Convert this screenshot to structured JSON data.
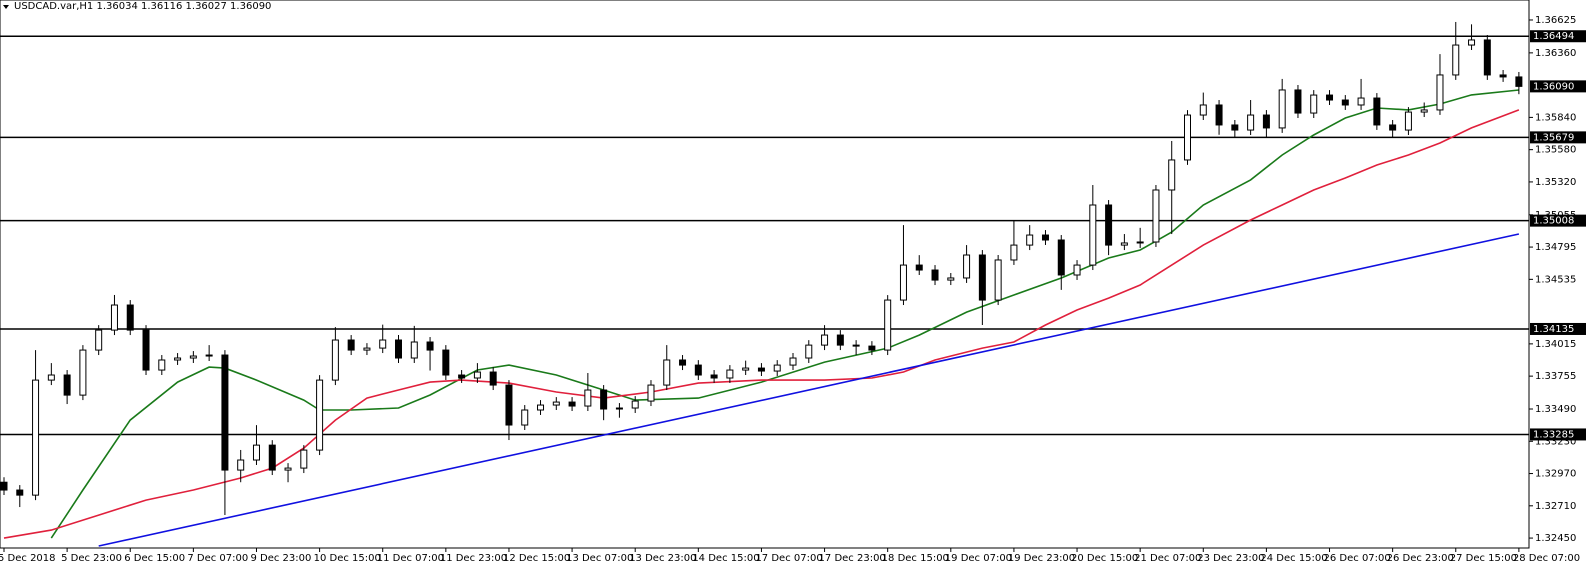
{
  "chart_data": {
    "type": "candlestick",
    "title": "USDCAD.var,H1  1.36034 1.36116 1.36027 1.36090",
    "bull_color": "#ffffff",
    "bear_color": "#000000",
    "ylim": [
      1.3237,
      1.36786
    ],
    "yticks": [
      1.36625,
      {
        "value": 1.3636,
        "label": "1.36360"
      },
      {
        "value": 1.3584,
        "label": "1.35840"
      },
      {
        "value": 1.3558,
        "label": "1.35580"
      },
      {
        "value": 1.3532,
        "label": "1.35320"
      },
      1.35055,
      1.34795,
      1.34535,
      1.34015,
      1.33755,
      {
        "value": 1.3349,
        "label": "1.33490"
      },
      {
        "value": 1.3323,
        "label": "1.33230"
      },
      {
        "value": 1.3297,
        "label": "1.32970"
      },
      {
        "value": 1.3271,
        "label": "1.32710"
      },
      {
        "value": 1.3245,
        "label": "1.32450"
      }
    ],
    "categories": [
      "5 Dec 2018",
      null,
      null,
      null,
      "5 Dec 23:00",
      null,
      null,
      null,
      "6 Dec 15:00",
      null,
      null,
      null,
      "7 Dec 07:00",
      null,
      null,
      null,
      "9 Dec 23:00",
      null,
      null,
      null,
      "10 Dec 15:00",
      null,
      null,
      null,
      "11 Dec 07:00",
      null,
      null,
      null,
      "11 Dec 23:00",
      null,
      null,
      null,
      "12 Dec 15:00",
      null,
      null,
      null,
      "13 Dec 07:00",
      null,
      null,
      null,
      "13 Dec 23:00",
      null,
      null,
      null,
      "14 Dec 15:00",
      null,
      null,
      null,
      "17 Dec 07:00",
      null,
      null,
      null,
      "17 Dec 23:00",
      null,
      null,
      null,
      "18 Dec 15:00",
      null,
      null,
      null,
      "19 Dec 07:00",
      null,
      null,
      null,
      "19 Dec 23:00",
      null,
      null,
      null,
      "20 Dec 15:00",
      null,
      null,
      null,
      "21 Dec 07:00",
      null,
      null,
      null,
      "23 Dec 23:00",
      null,
      null,
      null,
      "24 Dec 15:00",
      null,
      null,
      null,
      "26 Dec 07:00",
      null,
      null,
      null,
      "26 Dec 23:00",
      null,
      null,
      null,
      "27 Dec 15:00",
      null,
      null,
      null,
      "28 Dec 07:00"
    ],
    "open": [
      1.329,
      1.32837,
      1.32796,
      1.33723,
      1.33764,
      1.33602,
      1.33965,
      1.34126,
      1.34328,
      1.34126,
      1.33804,
      1.33885,
      1.33901,
      1.33917,
      1.33925,
      1.32998,
      1.33079,
      1.33199,
      1.32998,
      1.33014,
      1.33159,
      1.33723,
      1.34046,
      1.33965,
      1.33981,
      1.34046,
      1.33901,
      1.3403,
      1.33965,
      1.33764,
      1.3374,
      1.33788,
      1.33683,
      1.33361,
      1.33482,
      1.33522,
      1.33546,
      1.33514,
      1.33643,
      1.3349,
      1.33498,
      1.33554,
      1.33683,
      1.33885,
      1.33844,
      1.33764,
      1.3374,
      1.33804,
      1.3382,
      1.33796,
      1.33844,
      1.33901,
      1.34005,
      1.34086,
      1.34005,
      1.33997,
      1.33965,
      1.34368,
      1.3465,
      1.3461,
      1.34529,
      1.34546,
      1.34731,
      1.34368,
      1.34691,
      1.34811,
      1.34892,
      1.34852,
      1.3457,
      1.3465,
      1.35134,
      1.34811,
      1.34828,
      1.34836,
      1.35255,
      1.35497,
      1.35859,
      1.3594,
      1.35779,
      1.35738,
      1.35859,
      1.35755,
      1.36061,
      1.35875,
      1.3602,
      1.3598,
      1.3594,
      1.35996,
      1.35779,
      1.35738,
      1.35883,
      1.359,
      1.36182,
      1.36423,
      1.36464,
      1.36182,
      1.36166
    ],
    "high": [
      1.3294,
      1.32877,
      1.33965,
      1.3386,
      1.33804,
      1.34005,
      1.34166,
      1.34409,
      1.34368,
      1.34166,
      1.33925,
      1.33941,
      1.33957,
      1.34005,
      1.33965,
      1.3316,
      1.3336,
      1.33239,
      1.33054,
      1.33199,
      1.33763,
      1.3415,
      1.34086,
      1.34021,
      1.3417,
      1.34086,
      1.3416,
      1.3407,
      1.34005,
      1.33804,
      1.3386,
      1.33828,
      1.33723,
      1.33522,
      1.33562,
      1.33586,
      1.33586,
      1.3378,
      1.33683,
      1.33538,
      1.33594,
      1.33723,
      1.34005,
      1.33925,
      1.33884,
      1.33804,
      1.33844,
      1.3388,
      1.3386,
      1.33884,
      1.33941,
      1.34045,
      1.34166,
      1.34126,
      1.34045,
      1.34037,
      1.34408,
      1.34972,
      1.3473,
      1.3465,
      1.34586,
      1.34811,
      1.34771,
      1.34731,
      1.35013,
      1.34972,
      1.34932,
      1.34892,
      1.3469,
      1.35295,
      1.35174,
      1.349,
      1.3495,
      1.35295,
      1.3565,
      1.35899,
      1.3604,
      1.3598,
      1.35819,
      1.3598,
      1.35899,
      1.3615,
      1.36101,
      1.3606,
      1.3606,
      1.3602,
      1.3615,
      1.36036,
      1.35819,
      1.35923,
      1.3596,
      1.3635,
      1.36609,
      1.3659,
      1.36504,
      1.36222,
      1.36206
    ],
    "low": [
      1.32797,
      1.327,
      1.32756,
      1.33683,
      1.3353,
      1.33562,
      1.33925,
      1.34086,
      1.34086,
      1.33764,
      1.33764,
      1.33845,
      1.33861,
      1.33877,
      1.32636,
      1.329,
      1.33039,
      1.32958,
      1.329,
      1.32974,
      1.33119,
      1.33683,
      1.33925,
      1.33925,
      1.33941,
      1.33861,
      1.33861,
      1.338,
      1.33724,
      1.337,
      1.337,
      1.33643,
      1.3324,
      1.33321,
      1.33442,
      1.33482,
      1.33474,
      1.33474,
      1.334,
      1.3342,
      1.33458,
      1.33514,
      1.33643,
      1.33804,
      1.33724,
      1.337,
      1.337,
      1.33764,
      1.33756,
      1.33756,
      1.33804,
      1.33861,
      1.33965,
      1.33965,
      1.33925,
      1.33925,
      1.33925,
      1.34328,
      1.3457,
      1.34489,
      1.34489,
      1.34506,
      1.34167,
      1.34328,
      1.34651,
      1.34771,
      1.34812,
      1.3445,
      1.3453,
      1.3461,
      1.3473,
      1.34771,
      1.34788,
      1.34796,
      1.349,
      1.35457,
      1.35819,
      1.357,
      1.3568,
      1.35698,
      1.3568,
      1.35715,
      1.35835,
      1.35835,
      1.3594,
      1.359,
      1.359,
      1.35739,
      1.3568,
      1.35698,
      1.35843,
      1.3586,
      1.36142,
      1.36383,
      1.36142,
      1.36126,
      1.36027
    ],
    "close": [
      1.32837,
      1.32796,
      1.33723,
      1.33764,
      1.33602,
      1.33965,
      1.34126,
      1.34328,
      1.34126,
      1.33804,
      1.33885,
      1.33901,
      1.33917,
      1.33925,
      1.32998,
      1.33079,
      1.33199,
      1.32998,
      1.33014,
      1.33159,
      1.33723,
      1.34046,
      1.33965,
      1.33981,
      1.34046,
      1.33901,
      1.3403,
      1.33965,
      1.33764,
      1.3374,
      1.33788,
      1.33683,
      1.33361,
      1.33482,
      1.33522,
      1.33546,
      1.33514,
      1.33643,
      1.3349,
      1.33498,
      1.33554,
      1.33683,
      1.33885,
      1.33844,
      1.33764,
      1.3374,
      1.33804,
      1.3382,
      1.33796,
      1.33844,
      1.33901,
      1.34005,
      1.34086,
      1.34005,
      1.33997,
      1.33965,
      1.34368,
      1.3465,
      1.3461,
      1.34529,
      1.34546,
      1.34731,
      1.34368,
      1.34691,
      1.34811,
      1.34892,
      1.34852,
      1.3457,
      1.3465,
      1.35134,
      1.34811,
      1.34828,
      1.34836,
      1.35255,
      1.35497,
      1.35859,
      1.3594,
      1.35779,
      1.35738,
      1.35859,
      1.35755,
      1.36061,
      1.35875,
      1.3602,
      1.3598,
      1.3594,
      1.35996,
      1.35779,
      1.35738,
      1.35883,
      1.359,
      1.36182,
      1.36423,
      1.36464,
      1.36182,
      1.36166,
      1.3609
    ],
    "lines": [
      {
        "color": "#1a7a1a",
        "x": [
          3,
          5,
          8,
          11,
          13,
          14,
          16,
          19,
          20,
          22,
          25,
          27,
          30,
          32,
          35,
          38,
          40,
          44,
          48,
          52,
          56,
          58,
          61,
          64,
          67,
          70,
          72,
          74,
          76,
          79,
          81,
          83,
          85,
          87,
          89,
          91,
          93,
          96
        ],
        "values": [
          1.3245,
          1.32837,
          1.33401,
          1.33707,
          1.33828,
          1.3382,
          1.33723,
          1.33562,
          1.33482,
          1.33482,
          1.33498,
          1.33603,
          1.33804,
          1.33844,
          1.33764,
          1.33643,
          1.33562,
          1.33578,
          1.33707,
          1.33868,
          1.33981,
          1.34086,
          1.34271,
          1.34409,
          1.34546,
          1.34707,
          1.34771,
          1.34916,
          1.35134,
          1.35336,
          1.35537,
          1.35698,
          1.35835,
          1.35916,
          1.359,
          1.35948,
          1.36021,
          1.36061
        ]
      },
      {
        "color": "#e0203c",
        "x": [
          0,
          3,
          6,
          9,
          12,
          15,
          17,
          19,
          21,
          23,
          25,
          27,
          29,
          32,
          35,
          38,
          41,
          44,
          48,
          52,
          55,
          57,
          59,
          62,
          64,
          66,
          68,
          70,
          72,
          74,
          76,
          79,
          81,
          83,
          85,
          87,
          89,
          91,
          93,
          96
        ],
        "values": [
          1.3245,
          1.32514,
          1.32635,
          1.32756,
          1.32837,
          1.32934,
          1.33014,
          1.33175,
          1.33401,
          1.33578,
          1.33643,
          1.33707,
          1.33723,
          1.33699,
          1.33627,
          1.33578,
          1.33627,
          1.33699,
          1.33723,
          1.33723,
          1.3374,
          1.33788,
          1.33885,
          1.33981,
          1.3403,
          1.34167,
          1.34288,
          1.34384,
          1.34489,
          1.3465,
          1.34811,
          1.35013,
          1.35134,
          1.35255,
          1.35352,
          1.35456,
          1.35537,
          1.35634,
          1.35755,
          1.359
        ]
      },
      {
        "color": "#1010e0",
        "x": [
          6,
          96
        ],
        "values": [
          1.32386,
          1.349
        ]
      }
    ],
    "levels": [
      1.36494,
      1.35679,
      1.35008,
      1.34135,
      1.33285
    ],
    "bid": {
      "value": 1.3609,
      "label": "1.36090"
    }
  }
}
